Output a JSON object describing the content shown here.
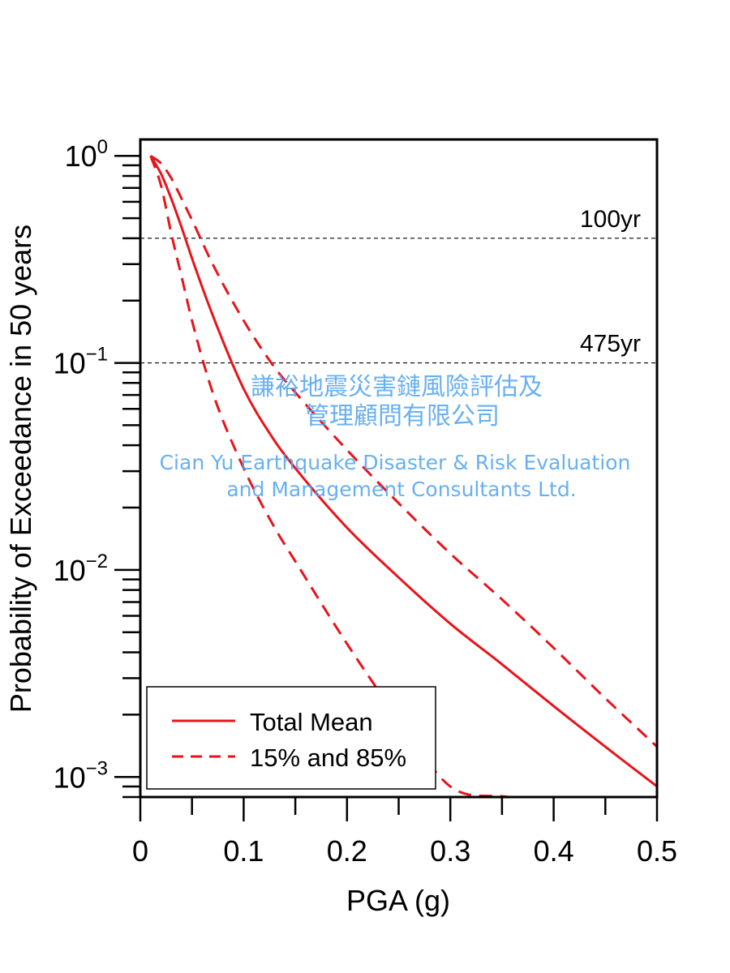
{
  "chart_data": {
    "type": "line",
    "xlabel": "PGA (g)",
    "ylabel": "Probability of Exceedance in 50 years",
    "xlim": [
      0,
      0.5
    ],
    "ylim": [
      0.0008,
      1.2
    ],
    "yscale": "log",
    "x_ticks": [
      "0",
      "0.1",
      "0.2",
      "0.3",
      "0.4",
      "0.5"
    ],
    "y_ticks": [
      {
        "base": "10",
        "exp": "0",
        "value": 1
      },
      {
        "base": "10",
        "exp": "−1",
        "value": 0.1
      },
      {
        "base": "10",
        "exp": "−2",
        "value": 0.01
      },
      {
        "base": "10",
        "exp": "−3",
        "value": 0.001
      }
    ],
    "grid": false,
    "legend_position": "bottom-left",
    "series": [
      {
        "name": "Total Mean",
        "style": "solid",
        "color": "#e8141b",
        "x": [
          0.01,
          0.02,
          0.03,
          0.04,
          0.05,
          0.07,
          0.1,
          0.13,
          0.15,
          0.2,
          0.25,
          0.3,
          0.35,
          0.4,
          0.45,
          0.5
        ],
        "y": [
          1.0,
          0.82,
          0.62,
          0.45,
          0.32,
          0.17,
          0.075,
          0.042,
          0.031,
          0.016,
          0.0092,
          0.0055,
          0.0035,
          0.0022,
          0.0014,
          0.0009
        ]
      },
      {
        "name": "15% and 85%",
        "style": "dashed",
        "color": "#e8141b",
        "x": [
          0.01,
          0.02,
          0.03,
          0.04,
          0.05,
          0.07,
          0.1,
          0.13,
          0.15,
          0.2,
          0.25,
          0.3,
          0.356
        ],
        "y": [
          1.0,
          0.72,
          0.42,
          0.26,
          0.16,
          0.072,
          0.031,
          0.016,
          0.011,
          0.0044,
          0.0019,
          0.0009,
          0.0008
        ]
      },
      {
        "name": "15% and 85%",
        "style": "dashed",
        "color": "#e8141b",
        "x": [
          0.01,
          0.02,
          0.03,
          0.04,
          0.05,
          0.07,
          0.1,
          0.13,
          0.15,
          0.2,
          0.25,
          0.3,
          0.35,
          0.4,
          0.45,
          0.5
        ],
        "y": [
          1.0,
          0.92,
          0.78,
          0.62,
          0.49,
          0.3,
          0.16,
          0.095,
          0.072,
          0.038,
          0.021,
          0.012,
          0.0072,
          0.0042,
          0.0024,
          0.0014
        ]
      }
    ],
    "reference_lines": [
      {
        "label": "100yr",
        "y": 0.4
      },
      {
        "label": "475yr",
        "y": 0.1
      }
    ]
  },
  "legend": {
    "items": [
      {
        "label": "Total Mean",
        "style": "solid"
      },
      {
        "label": "15% and 85%",
        "style": "dashed"
      }
    ]
  },
  "watermark": {
    "line1": "謙裕地震災害鏈風險評估及",
    "line2": "管理顧問有限公司",
    "line3": "Cian Yu Earthquake Disaster & Risk Evaluation",
    "line4": "and Management Consultants Ltd.",
    "color": "#4da3f0"
  }
}
